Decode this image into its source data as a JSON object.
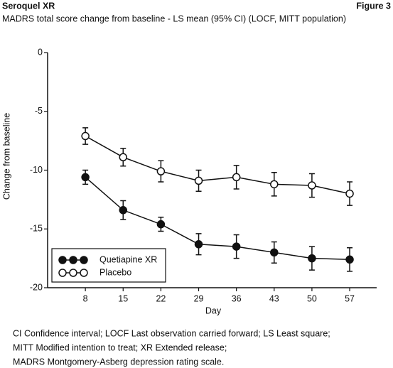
{
  "chart_data": {
    "type": "line",
    "source": "Seroquel XR",
    "figure_label": "Figure 3",
    "title": "MADRS total score change from baseline - LS mean (95% CI) (LOCF, MITT population)",
    "y_label": "Change from baseline",
    "x_label": "Day",
    "x": [
      8,
      15,
      22,
      29,
      36,
      43,
      50,
      57
    ],
    "xlim": [
      1,
      62
    ],
    "xticks": [
      8,
      15,
      22,
      29,
      36,
      43,
      50,
      57
    ],
    "ylim": [
      -20,
      0
    ],
    "yticks": [
      0,
      -5,
      -10,
      -15,
      -20
    ],
    "legend": "lower left",
    "series": [
      {
        "name": "Quetiapine XR",
        "color": "#111111",
        "marker": "filled",
        "values": [
          -10.6,
          -13.4,
          -14.6,
          -16.3,
          -16.5,
          -17.0,
          -17.5,
          -17.6
        ],
        "errors": [
          0.6,
          0.8,
          0.6,
          0.9,
          1.0,
          0.9,
          1.0,
          1.0
        ]
      },
      {
        "name": "Placebo",
        "color": "#111111",
        "marker": "open",
        "values": [
          -7.1,
          -8.9,
          -10.1,
          -10.9,
          -10.6,
          -11.2,
          -11.3,
          -12.0
        ],
        "errors": [
          0.7,
          0.75,
          0.9,
          0.9,
          1.0,
          1.0,
          1.0,
          1.0
        ]
      }
    ],
    "footnotes": [
      "CI Confidence interval; LOCF Last observation carried forward; LS Least square;",
      "MITT Modified intention to treat; XR Extended release;",
      "MADRS Montgomery-Asberg depression rating scale."
    ]
  }
}
